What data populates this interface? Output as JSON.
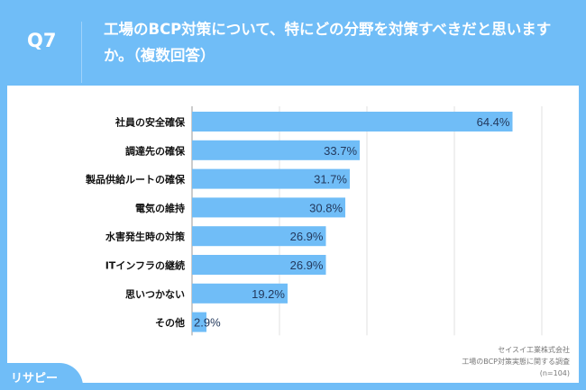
{
  "header": {
    "q": "Q7",
    "title": "工場のBCP対策について、特にどの分野を対策すべきだと思いますか。（複数回答）"
  },
  "source": {
    "company": "セイスイ工業株式会社",
    "survey": "工場のBCP対策実態に関する調査",
    "n": "(n=104)"
  },
  "logo": "リサピー",
  "chart_data": {
    "type": "bar",
    "orientation": "horizontal",
    "categories": [
      "社員の安全確保",
      "調達先の確保",
      "製品供給ルートの確保",
      "電気の維持",
      "水害発生時の対策",
      "ITインフラの継続",
      "思いつかない",
      "その他"
    ],
    "values": [
      64.4,
      33.7,
      31.7,
      30.8,
      26.9,
      26.9,
      19.2,
      2.9
    ],
    "labels": [
      "64.4%",
      "33.7%",
      "31.7%",
      "30.8%",
      "26.9%",
      "26.9%",
      "19.2%",
      "2.9%"
    ],
    "grid": true,
    "colors": {
      "bar": "#70bdf7",
      "label": "#23395d"
    }
  }
}
